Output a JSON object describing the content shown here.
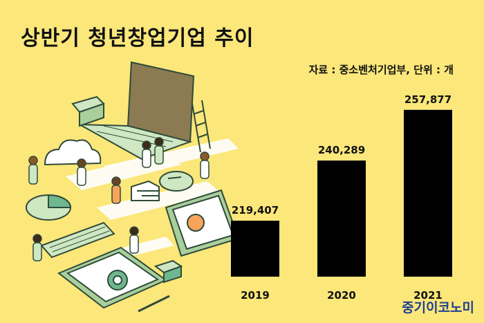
{
  "title": "상반기 청년창업기업 추이",
  "source_note": "자료 : 중소벤처기업부, 단위 : 개",
  "brand": "중기이코노미",
  "colors": {
    "background": "#fbe77a",
    "bar": "#000000",
    "brand": "#1f3f8f",
    "illustration_green": "#cfe7c2",
    "illustration_stroke": "#2e4a3a"
  },
  "illustration": {
    "icons": [
      "laptop-icon",
      "cloud-icon",
      "ladder-icon",
      "pie-chart-icon",
      "keyboard-icon",
      "tablet-icon",
      "mouse-icon",
      "stairs-icon",
      "pencil-icon",
      "person-icon"
    ]
  },
  "chart_data": {
    "type": "bar",
    "categories": [
      "2019",
      "2020",
      "2021"
    ],
    "values": [
      219407,
      240289,
      257877
    ],
    "value_labels": [
      "219,407",
      "240,289",
      "257,877"
    ],
    "title": "상반기 청년창업기업 추이",
    "xlabel": "",
    "ylabel": "",
    "unit": "개",
    "ylim": [
      200000,
      260000
    ],
    "grid": false,
    "legend": "none"
  }
}
